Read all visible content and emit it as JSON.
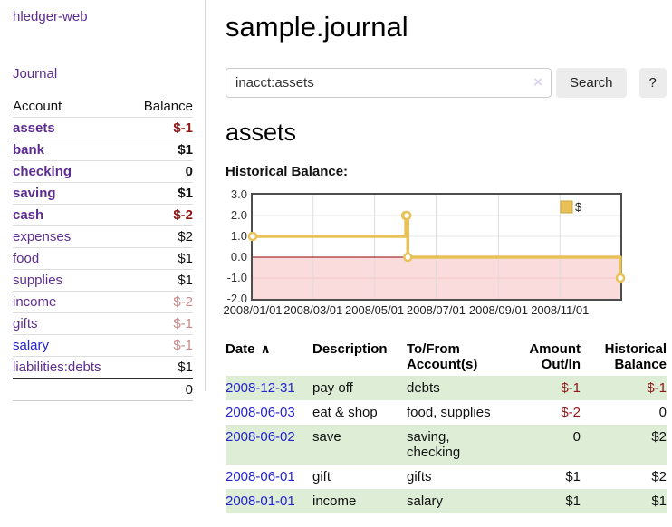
{
  "app": {
    "brand": "hledger-web"
  },
  "colors": {
    "link_purple": "#5c2d91",
    "link_blue": "#2424d0",
    "negative_strong": "#8e1616",
    "negative_pale": "#c98989",
    "row_green": "#ddedd6"
  },
  "sidebar": {
    "nav": {
      "journal": "Journal"
    },
    "accounts": {
      "headers": {
        "account": "Account",
        "balance": "Balance"
      },
      "rows": [
        {
          "name": "assets",
          "balance": "$-1"
        },
        {
          "name": "bank",
          "balance": "$1"
        },
        {
          "name": "checking",
          "balance": "0"
        },
        {
          "name": "saving",
          "balance": "$1"
        },
        {
          "name": "cash",
          "balance": "$-2"
        },
        {
          "name": "expenses",
          "balance": "$2"
        },
        {
          "name": "food",
          "balance": "$1"
        },
        {
          "name": "supplies",
          "balance": "$1"
        },
        {
          "name": "income",
          "balance": "$-2"
        },
        {
          "name": "gifts",
          "balance": "$-1"
        },
        {
          "name": "salary",
          "balance": "$-1"
        },
        {
          "name": "liabilities:debts",
          "balance": "$1"
        }
      ],
      "total": "0"
    }
  },
  "main": {
    "title": "sample.journal",
    "search": {
      "value": "inacct:assets",
      "clear_icon": "×",
      "button_label": "Search",
      "help_label": "?"
    },
    "section_title": "assets",
    "chart_label": "Historical Balance:"
  },
  "chart_data": {
    "type": "line",
    "step": true,
    "title": "Historical Balance",
    "series": [
      {
        "name": "$",
        "points": [
          [
            "2008-01-01",
            1
          ],
          [
            "2008-06-01",
            2
          ],
          [
            "2008-06-02",
            2
          ],
          [
            "2008-06-03",
            0
          ],
          [
            "2008-12-31",
            -1
          ]
        ]
      }
    ],
    "x_range": [
      "2008-01-01",
      "2008-12-31"
    ],
    "x_tick_labels": [
      "2008/01/01",
      "2008/03/01",
      "2008/05/01",
      "2008/07/01",
      "2008/09/01",
      "2008/11/01"
    ],
    "y_ticks": [
      3.0,
      2.0,
      1.0,
      0.0,
      -1.0,
      -2.0
    ],
    "ylim": [
      -2,
      3
    ],
    "legend_position": "top-right",
    "grid": true,
    "colors": {
      "line": "#e8c158",
      "line_edge": "#c9a53e",
      "marker_fill": "#ffffff",
      "zero_line": "#8b0000",
      "negative_region": "#fadcdc",
      "grid_v": "#dddddd",
      "grid_h": "#e7e7e7",
      "grid_h_neg": "#f0c6c6"
    }
  },
  "transactions": {
    "headers": {
      "date": "Date",
      "description": "Description",
      "accounts": "To/From Account(s)",
      "amount": "Amount Out/In",
      "balance": "Historical Balance"
    },
    "sort_icon": "∧",
    "rows": [
      {
        "date": "2008-12-31",
        "description": "pay off",
        "accounts": "debts",
        "amount": "$-1",
        "balance": "$-1"
      },
      {
        "date": "2008-06-03",
        "description": "eat & shop",
        "accounts": "food, supplies",
        "amount": "$-2",
        "balance": "0"
      },
      {
        "date": "2008-06-02",
        "description": "save",
        "accounts": "saving, checking",
        "amount": "0",
        "balance": "$2"
      },
      {
        "date": "2008-06-01",
        "description": "gift",
        "accounts": "gifts",
        "amount": "$1",
        "balance": "$2"
      },
      {
        "date": "2008-01-01",
        "description": "income",
        "accounts": "salary",
        "amount": "$1",
        "balance": "$1"
      }
    ]
  }
}
